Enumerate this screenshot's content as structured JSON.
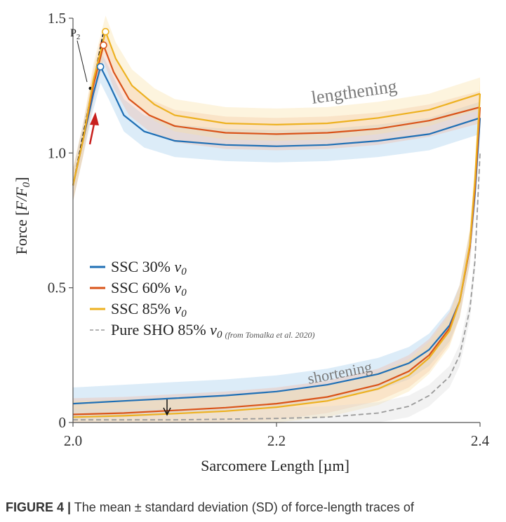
{
  "chart_data": {
    "type": "line",
    "xlabel": "Sarcomere Length [µm]",
    "ylabel": "Force [F/F0]",
    "ylabel_parts": {
      "text": "Force [",
      "sym": "F/F",
      "sub": "0",
      "end": "]"
    },
    "xlim": [
      2.0,
      2.4
    ],
    "ylim": [
      0,
      1.5
    ],
    "x_ticks": [
      {
        "value": 2.0,
        "label": "2.0"
      },
      {
        "value": 2.2,
        "label": "2.2"
      },
      {
        "value": 2.4,
        "label": "2.4"
      }
    ],
    "y_ticks": [
      {
        "value": 0,
        "label": "0"
      },
      {
        "value": 0.5,
        "label": "0.5"
      },
      {
        "value": 1.0,
        "label": "1.0"
      },
      {
        "value": 1.5,
        "label": "1.5"
      }
    ],
    "annotations": {
      "lengthening": "lengthening",
      "shortening": "shortening",
      "p2_main": "P",
      "p2_sub": "2"
    },
    "series": [
      {
        "name": "SSC 30% v0",
        "legend_text": "SSC 30% ",
        "color": "#1f6fb5",
        "band_color": "#9cc8ec",
        "sd": 0.06,
        "peak": {
          "x": 2.027,
          "y": 1.32
        },
        "lengthening": [
          [
            2.0,
            0.88
          ],
          [
            2.01,
            1.05
          ],
          [
            2.02,
            1.22
          ],
          [
            2.027,
            1.32
          ],
          [
            2.035,
            1.26
          ],
          [
            2.05,
            1.14
          ],
          [
            2.07,
            1.08
          ],
          [
            2.1,
            1.045
          ],
          [
            2.15,
            1.03
          ],
          [
            2.2,
            1.025
          ],
          [
            2.25,
            1.03
          ],
          [
            2.3,
            1.045
          ],
          [
            2.35,
            1.07
          ],
          [
            2.4,
            1.13
          ]
        ],
        "shortening": [
          [
            2.0,
            0.07
          ],
          [
            2.05,
            0.08
          ],
          [
            2.1,
            0.09
          ],
          [
            2.15,
            0.1
          ],
          [
            2.2,
            0.115
          ],
          [
            2.25,
            0.14
          ],
          [
            2.3,
            0.18
          ],
          [
            2.33,
            0.22
          ],
          [
            2.35,
            0.27
          ],
          [
            2.37,
            0.36
          ],
          [
            2.38,
            0.45
          ],
          [
            2.39,
            0.65
          ],
          [
            2.395,
            0.85
          ],
          [
            2.4,
            1.13
          ]
        ]
      },
      {
        "name": "SSC 60% v0",
        "legend_text": "SSC 60% ",
        "color": "#d95319",
        "band_color": "#f3b8a0",
        "sd": 0.06,
        "peak": {
          "x": 2.03,
          "y": 1.4
        },
        "lengthening": [
          [
            2.0,
            0.88
          ],
          [
            2.01,
            1.05
          ],
          [
            2.02,
            1.25
          ],
          [
            2.03,
            1.4
          ],
          [
            2.04,
            1.3
          ],
          [
            2.055,
            1.2
          ],
          [
            2.075,
            1.14
          ],
          [
            2.1,
            1.1
          ],
          [
            2.15,
            1.075
          ],
          [
            2.2,
            1.07
          ],
          [
            2.25,
            1.075
          ],
          [
            2.3,
            1.09
          ],
          [
            2.35,
            1.12
          ],
          [
            2.4,
            1.17
          ]
        ],
        "shortening": [
          [
            2.0,
            0.03
          ],
          [
            2.05,
            0.035
          ],
          [
            2.1,
            0.045
          ],
          [
            2.15,
            0.055
          ],
          [
            2.2,
            0.07
          ],
          [
            2.25,
            0.095
          ],
          [
            2.3,
            0.14
          ],
          [
            2.33,
            0.19
          ],
          [
            2.35,
            0.25
          ],
          [
            2.37,
            0.35
          ],
          [
            2.38,
            0.45
          ],
          [
            2.39,
            0.65
          ],
          [
            2.395,
            0.87
          ],
          [
            2.4,
            1.17
          ]
        ]
      },
      {
        "name": "SSC 85% v0",
        "legend_text": "SSC 85% ",
        "color": "#edb120",
        "band_color": "#f9dfa0",
        "sd": 0.06,
        "peak": {
          "x": 2.032,
          "y": 1.45
        },
        "lengthening": [
          [
            2.0,
            0.88
          ],
          [
            2.01,
            1.05
          ],
          [
            2.02,
            1.27
          ],
          [
            2.032,
            1.45
          ],
          [
            2.042,
            1.35
          ],
          [
            2.058,
            1.25
          ],
          [
            2.08,
            1.18
          ],
          [
            2.1,
            1.14
          ],
          [
            2.15,
            1.11
          ],
          [
            2.2,
            1.105
          ],
          [
            2.25,
            1.11
          ],
          [
            2.3,
            1.13
          ],
          [
            2.35,
            1.16
          ],
          [
            2.4,
            1.22
          ]
        ],
        "shortening": [
          [
            2.0,
            0.02
          ],
          [
            2.05,
            0.025
          ],
          [
            2.1,
            0.033
          ],
          [
            2.15,
            0.042
          ],
          [
            2.2,
            0.057
          ],
          [
            2.25,
            0.08
          ],
          [
            2.3,
            0.125
          ],
          [
            2.33,
            0.175
          ],
          [
            2.35,
            0.24
          ],
          [
            2.37,
            0.34
          ],
          [
            2.38,
            0.45
          ],
          [
            2.39,
            0.66
          ],
          [
            2.395,
            0.9
          ],
          [
            2.4,
            1.22
          ]
        ]
      },
      {
        "name": "Pure SHO 85% v0",
        "legend_text": "Pure SHO 85% ",
        "legend_note": "(from Tomalka et al. 2020)",
        "color": "#9a9a9a",
        "band_color": "#d9d9d9",
        "sd": 0.04,
        "dashed": true,
        "shortening": [
          [
            2.0,
            0.01
          ],
          [
            2.1,
            0.01
          ],
          [
            2.2,
            0.015
          ],
          [
            2.25,
            0.02
          ],
          [
            2.3,
            0.035
          ],
          [
            2.33,
            0.06
          ],
          [
            2.35,
            0.1
          ],
          [
            2.37,
            0.17
          ],
          [
            2.38,
            0.25
          ],
          [
            2.39,
            0.42
          ],
          [
            2.395,
            0.6
          ],
          [
            2.4,
            1.0
          ]
        ]
      }
    ],
    "p2_line": [
      [
        2.0,
        0.88
      ],
      [
        2.03,
        1.45
      ]
    ]
  },
  "caption": {
    "label": "FIGURE 4 |",
    "text": " The mean ± standard deviation (SD) of force-length traces of"
  }
}
